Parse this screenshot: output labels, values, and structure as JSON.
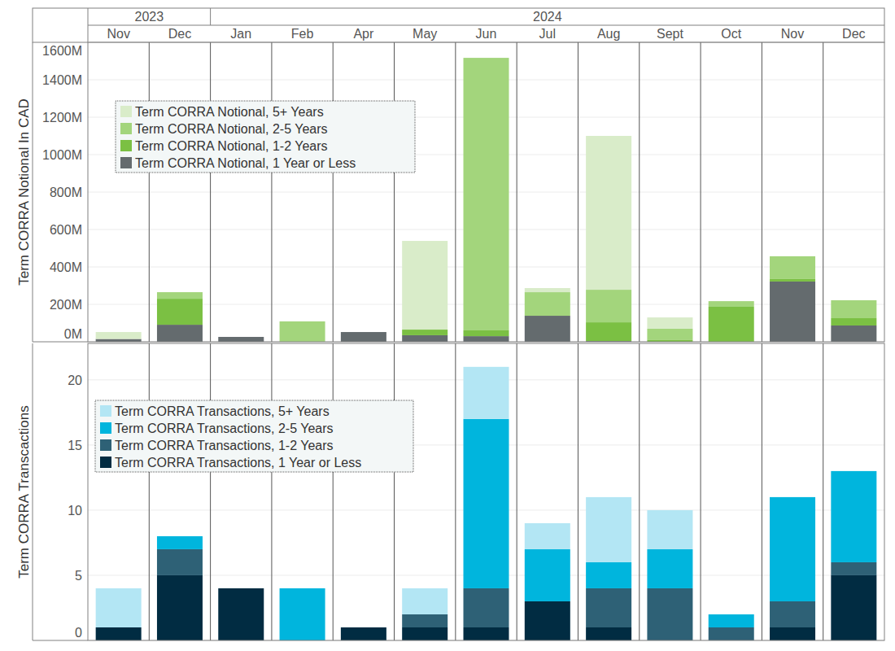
{
  "chart_data": [
    {
      "type": "bar",
      "stacked": true,
      "legend": "top-left",
      "grid": true,
      "y_label": "Term CORRA Notional In CAD",
      "categories": [
        "Nov",
        "Dec",
        "Jan",
        "Feb",
        "Apr",
        "May",
        "Jun",
        "Jul",
        "Aug",
        "Sept",
        "Oct",
        "Nov",
        "Dec"
      ],
      "category_groups": [
        "2023",
        "2023",
        "2024",
        "2024",
        "2024",
        "2024",
        "2024",
        "2024",
        "2024",
        "2024",
        "2024",
        "2024",
        "2024"
      ],
      "ylim": [
        0,
        1600000000
      ],
      "yticks": [
        {
          "value": 0,
          "label": "0M"
        },
        {
          "value": 200000000,
          "label": "200M"
        },
        {
          "value": 400000000,
          "label": "400M"
        },
        {
          "value": 600000000,
          "label": "600M"
        },
        {
          "value": 800000000,
          "label": "800M"
        },
        {
          "value": 1000000000,
          "label": "1000M"
        },
        {
          "value": 1200000000,
          "label": "1200M"
        },
        {
          "value": 1400000000,
          "label": "1400M"
        },
        {
          "value": 1600000000,
          "label": "1600M"
        }
      ],
      "series": [
        {
          "name": "Term CORRA Notional, 1 Year or Less",
          "color": "#646b6e",
          "values": [
            15000000,
            91000000,
            26000000,
            0,
            52000000,
            35000000,
            30000000,
            139000000,
            4000000,
            0,
            0,
            322000000,
            87000000
          ]
        },
        {
          "name": "Term CORRA Notional, 1-2 Years",
          "color": "#7bc043",
          "values": [
            0,
            139000000,
            0,
            0,
            0,
            30000000,
            31000000,
            0,
            100000000,
            9000000,
            187000000,
            13000000,
            39000000
          ]
        },
        {
          "name": "Term CORRA Notional, 2-5 Years",
          "color": "#a3d57c",
          "values": [
            0,
            35000000,
            0,
            109000000,
            0,
            0,
            1456000000,
            126000000,
            174000000,
            61000000,
            30000000,
            122000000,
            96000000
          ]
        },
        {
          "name": "Term CORRA Notional, 5+ Years",
          "color": "#d9ecc9",
          "values": [
            37000000,
            0,
            0,
            0,
            0,
            474000000,
            0,
            22000000,
            822000000,
            60000000,
            0,
            0,
            0
          ]
        }
      ]
    },
    {
      "type": "bar",
      "stacked": true,
      "legend": "top-left",
      "grid": true,
      "y_label": "Term CORRA Transcactions",
      "ylim": [
        0,
        22.8
      ],
      "yticks": [
        0,
        5,
        10,
        15,
        20
      ],
      "series": [
        {
          "name": "Term CORRA Transactions, 1 Year or Less",
          "color": "#012c42",
          "values": [
            1,
            5,
            4,
            0,
            1,
            1,
            1,
            3,
            1,
            0,
            0,
            1,
            5
          ]
        },
        {
          "name": "Term CORRA Transactions, 1-2 Years",
          "color": "#2e6176",
          "values": [
            0,
            2,
            0,
            0,
            0,
            1,
            3,
            0,
            3,
            4,
            1,
            2,
            1
          ]
        },
        {
          "name": "Term CORRA Transactions, 2-5 Years",
          "color": "#00b5dd",
          "values": [
            0,
            1,
            0,
            4,
            0,
            0,
            13,
            4,
            2,
            3,
            1,
            8,
            7
          ]
        },
        {
          "name": "Term CORRA Transactions, 5+ Years",
          "color": "#b3e6f4",
          "values": [
            3,
            0,
            0,
            0,
            0,
            2,
            4,
            2,
            5,
            3,
            0,
            0,
            0
          ]
        }
      ]
    }
  ]
}
